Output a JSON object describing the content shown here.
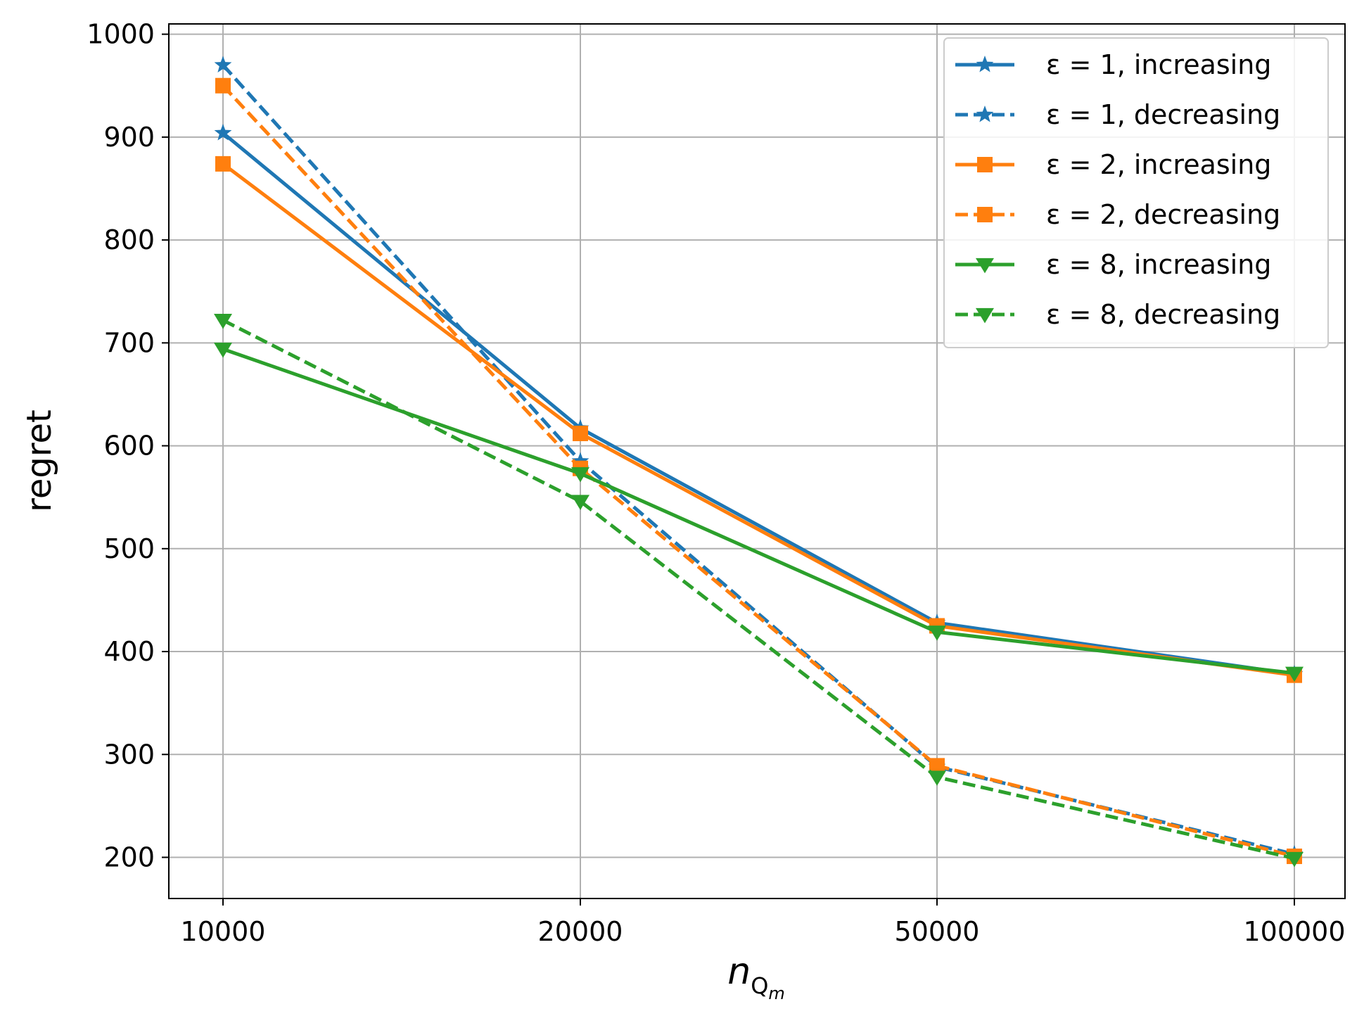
{
  "chart_data": {
    "type": "line",
    "x_categories": [
      "10000",
      "20000",
      "50000",
      "100000"
    ],
    "xlabel_main": "n",
    "xlabel_sub": "Q",
    "xlabel_subsub": "m",
    "ylabel": "regret",
    "ylim": [
      160,
      1010
    ],
    "yticks": [
      200,
      300,
      400,
      500,
      600,
      700,
      800,
      900,
      1000
    ],
    "grid": true,
    "legend_position": "top-right",
    "series": [
      {
        "name": "ε = 1, increasing",
        "color": "#1f77b4",
        "dash": "solid",
        "marker": "star",
        "values": [
          904,
          617,
          428,
          378
        ]
      },
      {
        "name": "ε = 1, decreasing",
        "color": "#1f77b4",
        "dash": "dashed",
        "marker": "star",
        "values": [
          970,
          585,
          288,
          203
        ]
      },
      {
        "name": "ε = 2, increasing",
        "color": "#ff7f0e",
        "dash": "solid",
        "marker": "square",
        "values": [
          874,
          612,
          425,
          377
        ]
      },
      {
        "name": "ε = 2, decreasing",
        "color": "#ff7f0e",
        "dash": "dashed",
        "marker": "square",
        "values": [
          950,
          578,
          289,
          201
        ]
      },
      {
        "name": "ε = 8, increasing",
        "color": "#2ca02c",
        "dash": "solid",
        "marker": "triangle",
        "values": [
          694,
          573,
          419,
          379
        ]
      },
      {
        "name": "ε = 8, decreasing",
        "color": "#2ca02c",
        "dash": "dashed",
        "marker": "triangle",
        "values": [
          722,
          546,
          278,
          199
        ]
      }
    ]
  }
}
